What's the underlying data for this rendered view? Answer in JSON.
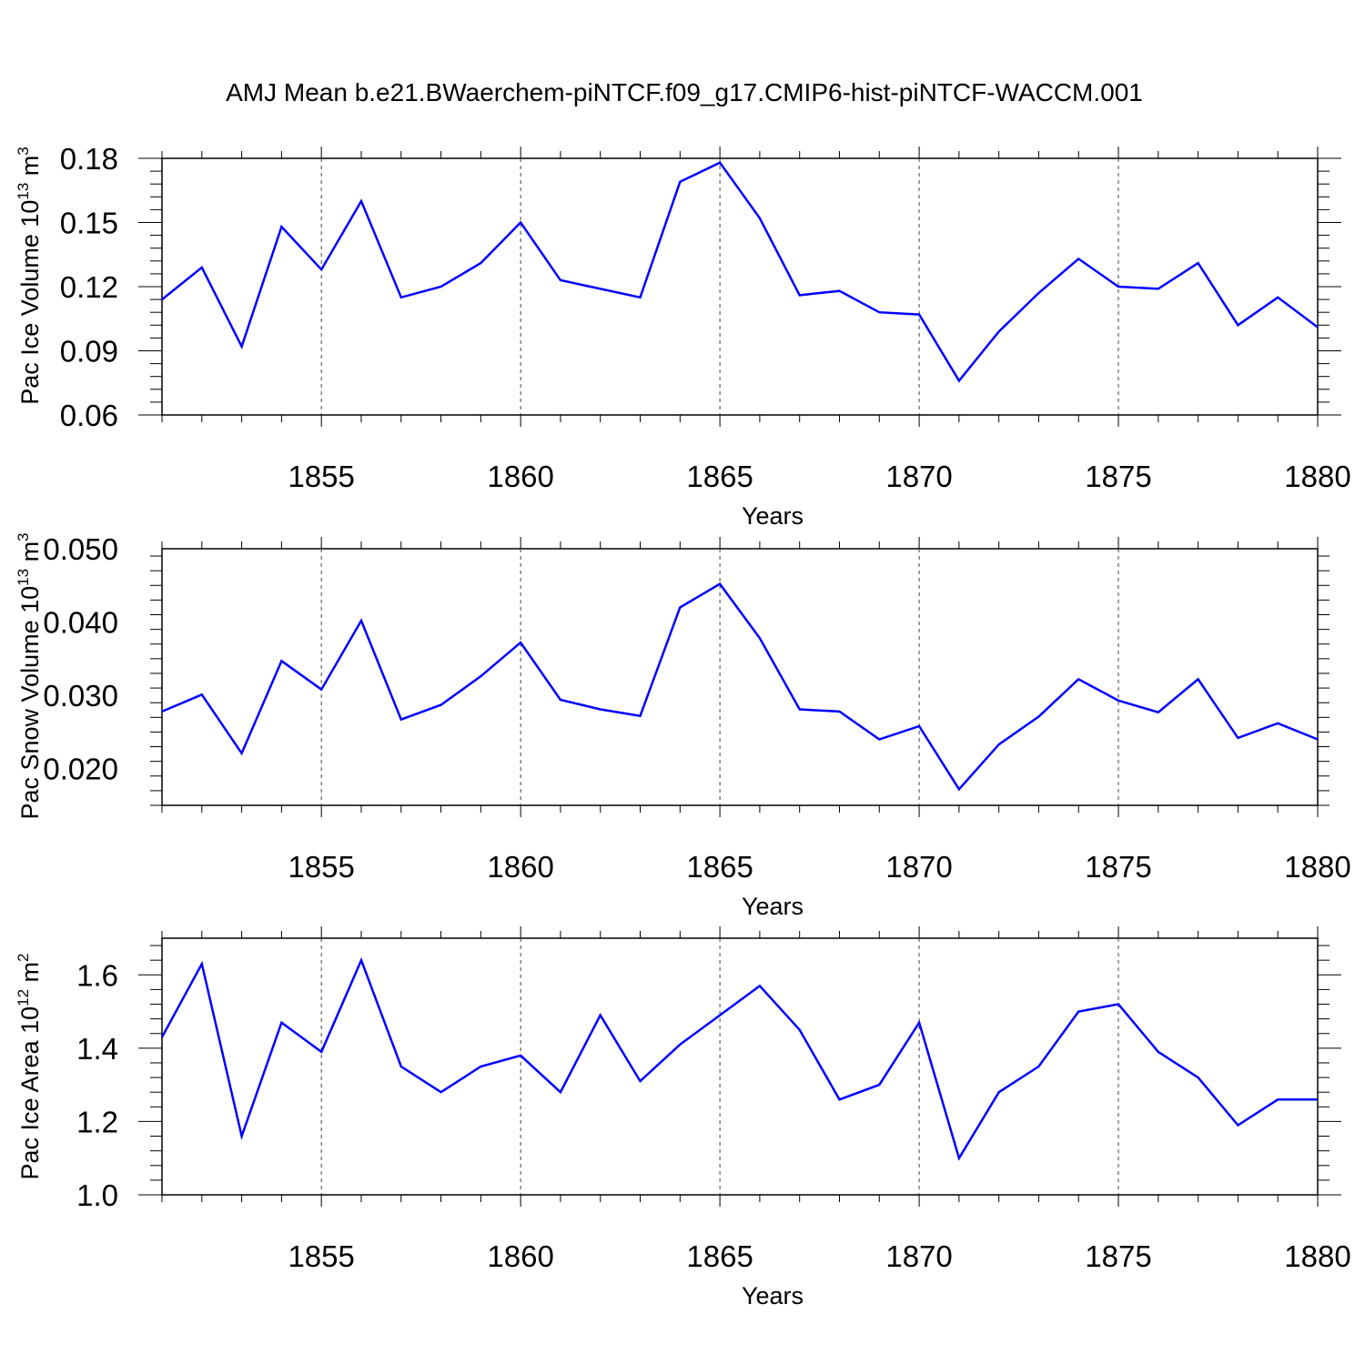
{
  "figure": {
    "title": "AMJ Mean b.e21.BWaerchem-piNTCF.f09_g17.CMIP6-hist-piNTCF-WACCM.001",
    "line_color": "#0000ff",
    "grid": "vertical dashed at major x ticks"
  },
  "chart_data": [
    {
      "type": "line",
      "title": "",
      "xlabel": "Years",
      "ylabel": "Pac Ice Volume 10",
      "ylabel_exp": "13",
      "ylabel_unit": " m",
      "ylabel_unit_exp": "3",
      "xlim": [
        1851,
        1880
      ],
      "ylim": [
        0.06,
        0.18
      ],
      "xticks": [
        1855,
        1860,
        1865,
        1870,
        1875,
        1880
      ],
      "xtick_labels": [
        "1855",
        "1860",
        "1865",
        "1870",
        "1875",
        "1880"
      ],
      "yticks": [
        0.06,
        0.09,
        0.12,
        0.15,
        0.18
      ],
      "ytick_labels": [
        "0.06",
        "0.09",
        "0.12",
        "0.15",
        "0.18"
      ],
      "series": [
        {
          "x": [
            1851,
            1852,
            1853,
            1854,
            1855,
            1856,
            1857,
            1858,
            1859,
            1860,
            1861,
            1862,
            1863,
            1864,
            1865,
            1866,
            1867,
            1868,
            1869,
            1870,
            1871,
            1872,
            1873,
            1874,
            1875,
            1876,
            1877,
            1878,
            1879,
            1880
          ],
          "values": [
            0.114,
            0.129,
            0.092,
            0.148,
            0.128,
            0.16,
            0.115,
            0.12,
            0.131,
            0.15,
            0.123,
            0.119,
            0.115,
            0.169,
            0.178,
            0.152,
            0.116,
            0.118,
            0.108,
            0.107,
            0.076,
            0.099,
            0.117,
            0.133,
            0.12,
            0.119,
            0.131,
            0.102,
            0.115,
            0.101
          ]
        }
      ]
    },
    {
      "type": "line",
      "title": "",
      "xlabel": "Years",
      "ylabel": "Pac Snow Volume 10",
      "ylabel_exp": "13",
      "ylabel_unit": " m",
      "ylabel_unit_exp": "3",
      "xlim": [
        1851,
        1880
      ],
      "ylim": [
        0.015,
        0.05
      ],
      "xticks": [
        1855,
        1860,
        1865,
        1870,
        1875,
        1880
      ],
      "xtick_labels": [
        "1855",
        "1860",
        "1865",
        "1870",
        "1875",
        "1880"
      ],
      "yticks": [
        0.02,
        0.03,
        0.04,
        0.05
      ],
      "ytick_labels": [
        "0.020",
        "0.030",
        "0.040",
        "0.050"
      ],
      "series": [
        {
          "x": [
            1851,
            1852,
            1853,
            1854,
            1855,
            1856,
            1857,
            1858,
            1859,
            1860,
            1861,
            1862,
            1863,
            1864,
            1865,
            1866,
            1867,
            1868,
            1869,
            1870,
            1871,
            1872,
            1873,
            1874,
            1875,
            1876,
            1877,
            1878,
            1879,
            1880
          ],
          "values": [
            0.0278,
            0.0301,
            0.0221,
            0.0347,
            0.0308,
            0.0402,
            0.0267,
            0.0287,
            0.0326,
            0.0372,
            0.0294,
            0.0281,
            0.0272,
            0.042,
            0.0452,
            0.0378,
            0.0281,
            0.0278,
            0.024,
            0.0258,
            0.0172,
            0.0233,
            0.0271,
            0.0322,
            0.0293,
            0.0277,
            0.0322,
            0.0242,
            0.0262,
            0.024
          ]
        }
      ]
    },
    {
      "type": "line",
      "title": "",
      "xlabel": "Years",
      "ylabel": "Pac Ice Area 10",
      "ylabel_exp": "12",
      "ylabel_unit": " m",
      "ylabel_unit_exp": "2",
      "xlim": [
        1851,
        1880
      ],
      "ylim": [
        1.0,
        1.7
      ],
      "xticks": [
        1855,
        1860,
        1865,
        1870,
        1875,
        1880
      ],
      "xtick_labels": [
        "1855",
        "1860",
        "1865",
        "1870",
        "1875",
        "1880"
      ],
      "yticks": [
        1.0,
        1.2,
        1.4,
        1.6
      ],
      "ytick_labels": [
        "1.0",
        "1.2",
        "1.4",
        "1.6"
      ],
      "series": [
        {
          "x": [
            1851,
            1852,
            1853,
            1854,
            1855,
            1856,
            1857,
            1858,
            1859,
            1860,
            1861,
            1862,
            1863,
            1864,
            1865,
            1866,
            1867,
            1868,
            1869,
            1870,
            1871,
            1872,
            1873,
            1874,
            1875,
            1876,
            1877,
            1878,
            1879,
            1880
          ],
          "values": [
            1.43,
            1.63,
            1.16,
            1.47,
            1.39,
            1.64,
            1.35,
            1.28,
            1.35,
            1.38,
            1.28,
            1.49,
            1.31,
            1.41,
            1.49,
            1.57,
            1.45,
            1.26,
            1.3,
            1.47,
            1.1,
            1.28,
            1.35,
            1.5,
            1.52,
            1.39,
            1.32,
            1.19,
            1.26,
            1.26
          ]
        }
      ]
    }
  ]
}
